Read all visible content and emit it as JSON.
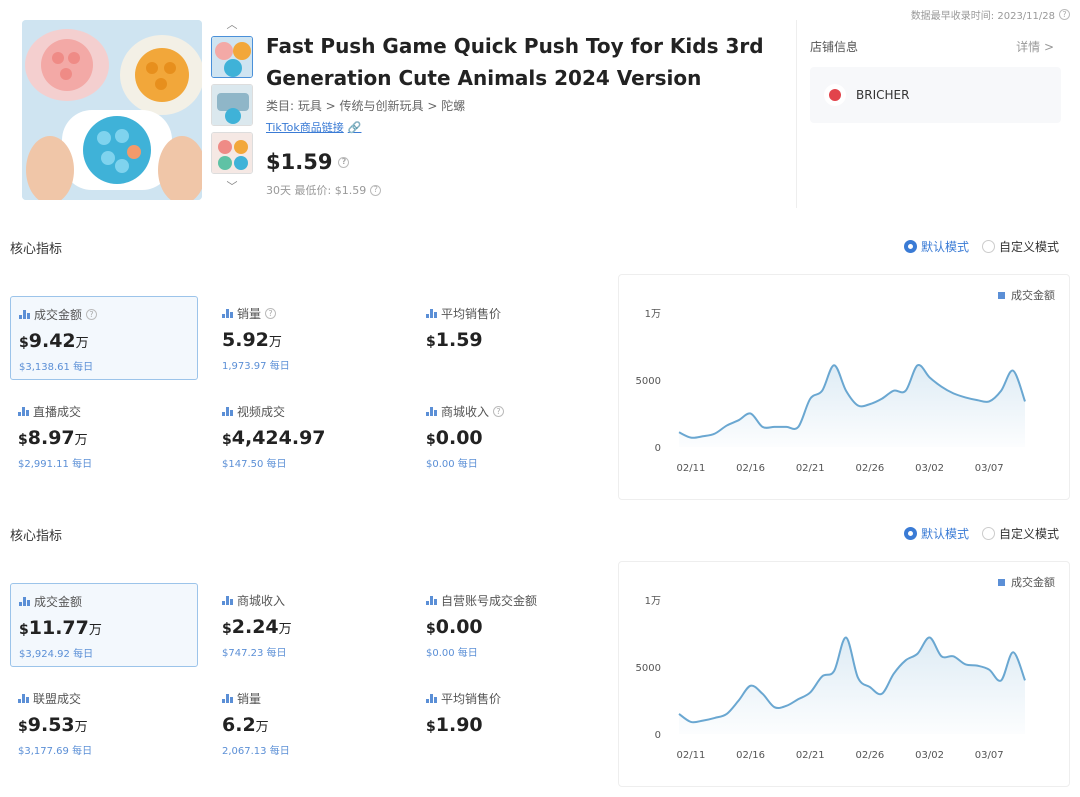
{
  "header": {
    "note": "数据最早收录时间: 2023/11/28",
    "title": "Fast Push Game Quick Push Toy for Kids 3rd Generation Cute Animals 2024 Version",
    "category": "类目: 玩具 > 传统与创新玩具 > 陀螺",
    "tiktok_link": "TikTok商品链接",
    "price": "$1.59",
    "lowest": "30天 最低价: $1.59"
  },
  "store": {
    "heading": "店铺信息",
    "detail": "详情 >",
    "name": "BRICHER"
  },
  "icons": {
    "accent": "#3a7bd5",
    "series_color": "#6aa7d1",
    "thumb_up": "chevron-up-icon",
    "thumb_down": "chevron-down-icon"
  },
  "sections": [
    {
      "title": "核心指标",
      "mode_default": "默认模式",
      "mode_custom": "自定义模式",
      "metrics": [
        {
          "label": "成交金额",
          "cur": "$",
          "value": "9.42",
          "unit": "万",
          "sub": "$3,138.61 每日"
        },
        {
          "label": "销量",
          "cur": "",
          "value": "5.92",
          "unit": "万",
          "sub": "1,973.97 每日"
        },
        {
          "label": "平均销售价",
          "cur": "$",
          "value": "1.59",
          "unit": "",
          "sub": ""
        },
        {
          "label": "直播成交",
          "cur": "$",
          "value": "8.97",
          "unit": "万",
          "sub": "$2,991.11 每日"
        },
        {
          "label": "视频成交",
          "cur": "$",
          "value": "4,424.97",
          "unit": "",
          "sub": "$147.50 每日"
        },
        {
          "label": "商城收入",
          "cur": "$",
          "value": "0.00",
          "unit": "",
          "sub": "$0.00 每日"
        }
      ],
      "legend": "成交金额",
      "chart_data": {
        "type": "area",
        "x": [
          "02/10",
          "02/11",
          "02/12",
          "02/13",
          "02/14",
          "02/15",
          "02/16",
          "02/17",
          "02/18",
          "02/19",
          "02/20",
          "02/21",
          "02/22",
          "02/23",
          "02/24",
          "02/25",
          "02/26",
          "02/27",
          "02/28",
          "02/29",
          "03/01",
          "03/02",
          "03/03",
          "03/04",
          "03/05",
          "03/06",
          "03/07",
          "03/08",
          "03/09",
          "03/10"
        ],
        "values": [
          1100,
          700,
          800,
          1000,
          1600,
          2000,
          2500,
          1500,
          1500,
          1500,
          1500,
          3600,
          4200,
          6100,
          4200,
          3100,
          3200,
          3600,
          4200,
          4200,
          6100,
          5200,
          4500,
          4000,
          3700,
          3500,
          3400,
          4200,
          5700,
          3400
        ],
        "yticks": [
          "0",
          "5000",
          "1万"
        ],
        "ylim": [
          0,
          10000
        ],
        "xticks": [
          "02/11",
          "02/16",
          "02/21",
          "02/26",
          "03/02",
          "03/07"
        ]
      }
    },
    {
      "title": "核心指标",
      "mode_default": "默认模式",
      "mode_custom": "自定义模式",
      "metrics": [
        {
          "label": "成交金额",
          "cur": "$",
          "value": "11.77",
          "unit": "万",
          "sub": "$3,924.92 每日"
        },
        {
          "label": "商城收入",
          "cur": "$",
          "value": "2.24",
          "unit": "万",
          "sub": "$747.23 每日"
        },
        {
          "label": "自营账号成交金额",
          "cur": "$",
          "value": "0.00",
          "unit": "",
          "sub": "$0.00 每日"
        },
        {
          "label": "联盟成交",
          "cur": "$",
          "value": "9.53",
          "unit": "万",
          "sub": "$3,177.69 每日"
        },
        {
          "label": "销量",
          "cur": "",
          "value": "6.2",
          "unit": "万",
          "sub": "2,067.13 每日"
        },
        {
          "label": "平均销售价",
          "cur": "$",
          "value": "1.90",
          "unit": "",
          "sub": ""
        }
      ],
      "legend": "成交金额",
      "chart_data": {
        "type": "area",
        "x": [
          "02/10",
          "02/11",
          "02/12",
          "02/13",
          "02/14",
          "02/15",
          "02/16",
          "02/17",
          "02/18",
          "02/19",
          "02/20",
          "02/21",
          "02/22",
          "02/23",
          "02/24",
          "02/25",
          "02/26",
          "02/27",
          "02/28",
          "02/29",
          "03/01",
          "03/02",
          "03/03",
          "03/04",
          "03/05",
          "03/06",
          "03/07",
          "03/08",
          "03/09",
          "03/10"
        ],
        "values": [
          1500,
          900,
          1000,
          1200,
          1500,
          2500,
          3600,
          3000,
          2000,
          2100,
          2600,
          3100,
          4300,
          4700,
          7200,
          4200,
          3500,
          3000,
          4500,
          5500,
          6000,
          7200,
          5800,
          5800,
          5200,
          5100,
          4800,
          4000,
          6100,
          4000
        ],
        "yticks": [
          "0",
          "5000",
          "1万"
        ],
        "ylim": [
          0,
          10000
        ],
        "xticks": [
          "02/11",
          "02/16",
          "02/21",
          "02/26",
          "03/02",
          "03/07"
        ]
      }
    }
  ]
}
